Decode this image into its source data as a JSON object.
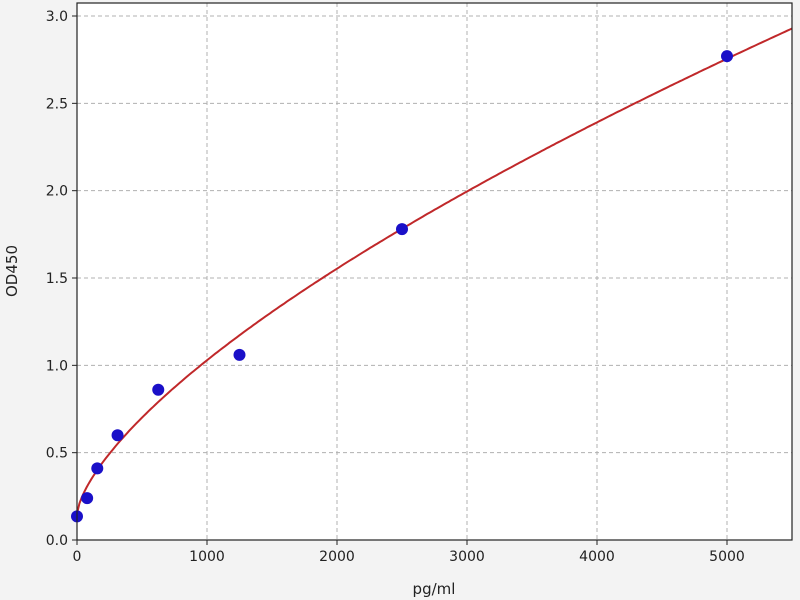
{
  "chart_data": {
    "type": "scatter",
    "title": "",
    "xlabel": "pg/ml",
    "ylabel": "OD450",
    "xlim": [
      0,
      5500
    ],
    "ylim": [
      0,
      3.0
    ],
    "xticks": [
      0,
      1000,
      2000,
      3000,
      4000,
      5000
    ],
    "yticks": [
      0.0,
      0.5,
      1.0,
      1.5,
      2.0,
      2.5,
      3.0
    ],
    "xtick_labels": [
      "0",
      "1000",
      "2000",
      "3000",
      "4000",
      "5000"
    ],
    "ytick_labels": [
      "0.0",
      "0.5",
      "1.0",
      "1.5",
      "2.0",
      "2.5",
      "3.0"
    ],
    "grid": true,
    "points": {
      "x": [
        0,
        78,
        156,
        312,
        625,
        1250,
        2500,
        5000
      ],
      "y": [
        0.135,
        0.24,
        0.41,
        0.6,
        0.86,
        1.06,
        1.78,
        2.77
      ],
      "color": "#1a10c8"
    },
    "fit_curve": {
      "model": "y = a + b * x^c",
      "a": 0.15,
      "b": 0.0083,
      "c": 0.675,
      "color": "#c0282a"
    }
  }
}
